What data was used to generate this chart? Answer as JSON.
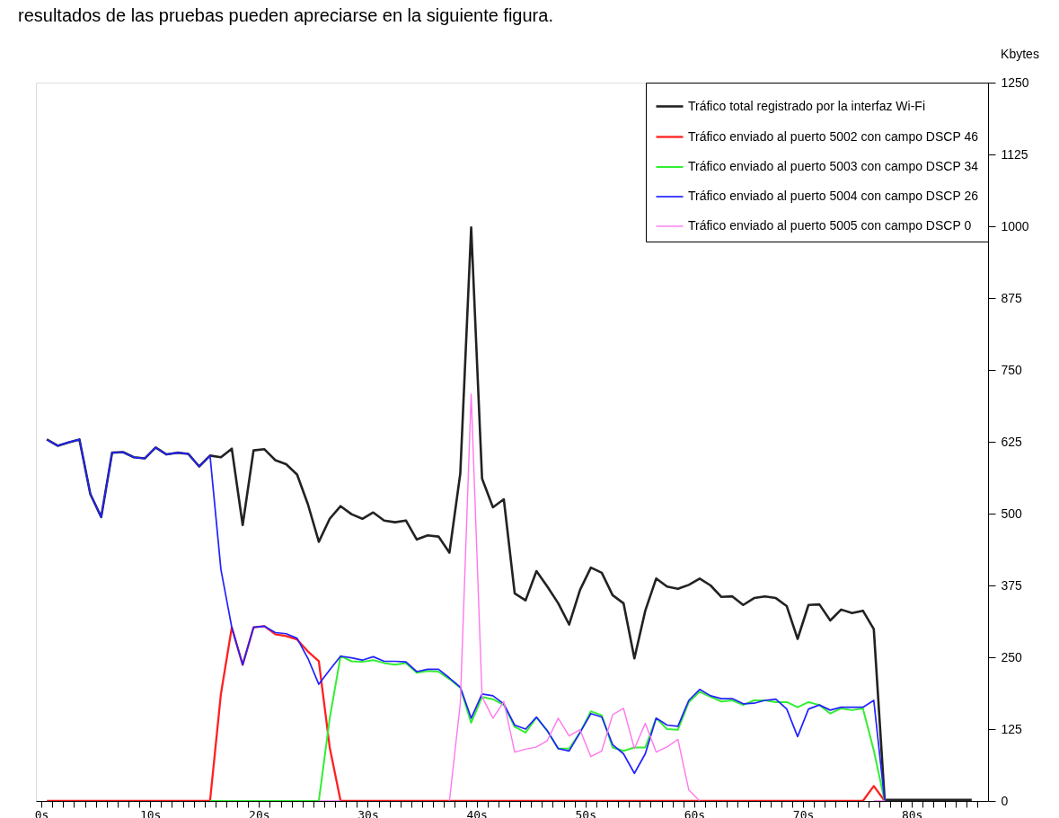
{
  "chart_data": {
    "type": "line",
    "annotations": [
      "resultados de las pruebas pueden apreciarse en la siguiente figura."
    ],
    "ylabel": "Kbytes",
    "x": [
      0.5,
      1.5,
      2.5,
      3.5,
      4.5,
      5.5,
      6.5,
      7.5,
      8.5,
      9.5,
      10.5,
      11.5,
      12.5,
      13.5,
      14.5,
      15.5,
      16.5,
      17.5,
      18.5,
      19.5,
      20.5,
      21.5,
      22.5,
      23.5,
      24.5,
      25.5,
      26.5,
      27.5,
      28.5,
      29.5,
      30.5,
      31.5,
      32.5,
      33.5,
      34.5,
      35.5,
      36.5,
      37.5,
      38.5,
      39.5,
      40.5,
      41.5,
      42.5,
      43.5,
      44.5,
      45.5,
      46.5,
      47.5,
      48.5,
      49.5,
      50.5,
      51.5,
      52.5,
      53.5,
      54.5,
      55.5,
      56.5,
      57.5,
      58.5,
      59.5,
      60.5,
      61.5,
      62.5,
      63.5,
      64.5,
      65.5,
      66.5,
      67.5,
      68.5,
      69.5,
      70.5,
      71.5,
      72.5,
      73.5,
      74.5,
      75.5,
      76.5,
      77.5,
      78.5,
      79.5,
      80.5,
      81.5,
      82.5,
      83.5,
      84.5,
      85.5
    ],
    "series": [
      {
        "name": "Tráfico total registrado por la interfaz Wi-Fi",
        "color": "#222222",
        "values": [
          629,
          618,
          624,
          629,
          534,
          494,
          606,
          607,
          598,
          596,
          615,
          603,
          606,
          604,
          582,
          601,
          598,
          613,
          480,
          610,
          612,
          593,
          586,
          568,
          516,
          451,
          491,
          513,
          499,
          491,
          502,
          488,
          485,
          488,
          455,
          462,
          460,
          432,
          570,
          998,
          561,
          511,
          525,
          361,
          349,
          400,
          373,
          344,
          307,
          367,
          406,
          397,
          358,
          344,
          248,
          331,
          387,
          373,
          369,
          376,
          387,
          375,
          355,
          356,
          341,
          353,
          356,
          353,
          339,
          282,
          341,
          342,
          314,
          333,
          327,
          331,
          299,
          2,
          2,
          2,
          2,
          2,
          2,
          2,
          2,
          2
        ]
      },
      {
        "name": "Tráfico enviado al puerto 5002 con campo DSCP 46",
        "color": "#ff2020",
        "values": [
          0,
          0,
          0,
          0,
          0,
          0,
          0,
          0,
          0,
          0,
          0,
          0,
          0,
          0,
          0,
          0,
          186,
          302,
          237,
          302,
          304,
          290,
          287,
          281,
          260,
          243,
          93,
          0,
          0,
          0,
          0,
          0,
          0,
          0,
          0,
          0,
          0,
          0,
          0,
          0,
          0,
          0,
          0,
          0,
          0,
          0,
          0,
          0,
          0,
          0,
          0,
          0,
          0,
          0,
          0,
          0,
          0,
          0,
          0,
          0,
          0,
          0,
          0,
          0,
          0,
          0,
          0,
          0,
          0,
          0,
          0,
          0,
          0,
          0,
          0,
          0,
          26,
          0,
          null,
          null,
          null,
          null,
          null,
          null,
          null,
          null
        ]
      },
      {
        "name": "Tráfico enviado al puerto 5003 con campo DSCP 34",
        "color": "#33ee33",
        "values": [
          null,
          null,
          null,
          null,
          null,
          null,
          null,
          null,
          null,
          null,
          null,
          null,
          null,
          null,
          null,
          0,
          0,
          0,
          0,
          0,
          0,
          0,
          0,
          0,
          0,
          0,
          144,
          252,
          243,
          242,
          245,
          240,
          237,
          240,
          223,
          226,
          225,
          212,
          197,
          136,
          181,
          177,
          167,
          129,
          119,
          145,
          122,
          91,
          91,
          119,
          156,
          149,
          93,
          87,
          93,
          93,
          144,
          125,
          124,
          172,
          190,
          181,
          173,
          175,
          167,
          175,
          175,
          172,
          172,
          163,
          172,
          167,
          152,
          161,
          158,
          161,
          88,
          0,
          null,
          null,
          null,
          null,
          null,
          null,
          null,
          null
        ]
      },
      {
        "name": "Tráfico enviado al puerto 5004 con campo DSCP 26",
        "color": "#2222ff",
        "values": [
          629,
          618,
          624,
          629,
          534,
          494,
          606,
          607,
          598,
          596,
          615,
          603,
          606,
          604,
          582,
          601,
          403,
          302,
          237,
          302,
          304,
          293,
          291,
          283,
          248,
          203,
          228,
          252,
          249,
          245,
          251,
          243,
          243,
          242,
          225,
          229,
          229,
          214,
          198,
          144,
          186,
          183,
          169,
          132,
          125,
          146,
          122,
          91,
          87,
          119,
          152,
          146,
          98,
          82,
          48,
          82,
          144,
          132,
          130,
          175,
          194,
          183,
          178,
          178,
          169,
          170,
          175,
          177,
          160,
          112,
          160,
          167,
          158,
          163,
          163,
          163,
          175,
          0,
          null,
          null,
          null,
          null,
          null,
          null,
          null,
          null
        ]
      },
      {
        "name": "Tráfico enviado al puerto 5005 con campo DSCP 0",
        "color": "#ff77ee",
        "values": [
          null,
          null,
          null,
          null,
          null,
          null,
          null,
          null,
          null,
          null,
          null,
          null,
          null,
          null,
          null,
          null,
          null,
          null,
          null,
          null,
          null,
          null,
          null,
          null,
          null,
          0,
          0,
          0,
          null,
          null,
          null,
          null,
          null,
          null,
          null,
          null,
          null,
          0,
          170,
          708,
          181,
          144,
          173,
          85,
          90,
          94,
          105,
          144,
          113,
          124,
          77,
          87,
          150,
          161,
          91,
          135,
          85,
          94,
          107,
          19,
          0,
          null,
          null,
          null,
          null,
          null,
          null,
          null,
          null,
          null,
          null,
          null,
          null,
          null,
          null,
          null,
          0,
          0,
          null,
          null,
          null,
          null,
          null,
          null,
          null,
          null
        ]
      }
    ],
    "xlim": [
      -0.5,
      87
    ],
    "xticks": [
      {
        "value": 0,
        "label": "0s"
      },
      {
        "value": 1,
        "label": null
      },
      {
        "value": 2,
        "label": null
      },
      {
        "value": 3,
        "label": null
      },
      {
        "value": 4,
        "label": null
      },
      {
        "value": 5,
        "label": null
      },
      {
        "value": 6,
        "label": null
      },
      {
        "value": 7,
        "label": null
      },
      {
        "value": 8,
        "label": null
      },
      {
        "value": 9,
        "label": null
      },
      {
        "value": 10,
        "label": "10s"
      },
      {
        "value": 11,
        "label": null
      },
      {
        "value": 12,
        "label": null
      },
      {
        "value": 13,
        "label": null
      },
      {
        "value": 14,
        "label": null
      },
      {
        "value": 15,
        "label": null
      },
      {
        "value": 16,
        "label": null
      },
      {
        "value": 17,
        "label": null
      },
      {
        "value": 18,
        "label": null
      },
      {
        "value": 19,
        "label": null
      },
      {
        "value": 20,
        "label": "20s"
      },
      {
        "value": 21,
        "label": null
      },
      {
        "value": 22,
        "label": null
      },
      {
        "value": 23,
        "label": null
      },
      {
        "value": 24,
        "label": null
      },
      {
        "value": 25,
        "label": null
      },
      {
        "value": 26,
        "label": null
      },
      {
        "value": 27,
        "label": null
      },
      {
        "value": 28,
        "label": null
      },
      {
        "value": 29,
        "label": null
      },
      {
        "value": 30,
        "label": "30s"
      },
      {
        "value": 31,
        "label": null
      },
      {
        "value": 32,
        "label": null
      },
      {
        "value": 33,
        "label": null
      },
      {
        "value": 34,
        "label": null
      },
      {
        "value": 35,
        "label": null
      },
      {
        "value": 36,
        "label": null
      },
      {
        "value": 37,
        "label": null
      },
      {
        "value": 38,
        "label": null
      },
      {
        "value": 39,
        "label": null
      },
      {
        "value": 40,
        "label": "40s"
      },
      {
        "value": 41,
        "label": null
      },
      {
        "value": 42,
        "label": null
      },
      {
        "value": 43,
        "label": null
      },
      {
        "value": 44,
        "label": null
      },
      {
        "value": 45,
        "label": null
      },
      {
        "value": 46,
        "label": null
      },
      {
        "value": 47,
        "label": null
      },
      {
        "value": 48,
        "label": null
      },
      {
        "value": 49,
        "label": null
      },
      {
        "value": 50,
        "label": "50s"
      },
      {
        "value": 51,
        "label": null
      },
      {
        "value": 52,
        "label": null
      },
      {
        "value": 53,
        "label": null
      },
      {
        "value": 54,
        "label": null
      },
      {
        "value": 55,
        "label": null
      },
      {
        "value": 56,
        "label": null
      },
      {
        "value": 57,
        "label": null
      },
      {
        "value": 58,
        "label": null
      },
      {
        "value": 59,
        "label": null
      },
      {
        "value": 60,
        "label": "60s"
      },
      {
        "value": 61,
        "label": null
      },
      {
        "value": 62,
        "label": null
      },
      {
        "value": 63,
        "label": null
      },
      {
        "value": 64,
        "label": null
      },
      {
        "value": 65,
        "label": null
      },
      {
        "value": 66,
        "label": null
      },
      {
        "value": 67,
        "label": null
      },
      {
        "value": 68,
        "label": null
      },
      {
        "value": 69,
        "label": null
      },
      {
        "value": 70,
        "label": "70s"
      },
      {
        "value": 71,
        "label": null
      },
      {
        "value": 72,
        "label": null
      },
      {
        "value": 73,
        "label": null
      },
      {
        "value": 74,
        "label": null
      },
      {
        "value": 75,
        "label": null
      },
      {
        "value": 76,
        "label": null
      },
      {
        "value": 77,
        "label": null
      },
      {
        "value": 78,
        "label": null
      },
      {
        "value": 79,
        "label": null
      },
      {
        "value": 80,
        "label": "80s"
      },
      {
        "value": 81,
        "label": null
      },
      {
        "value": 82,
        "label": null
      },
      {
        "value": 83,
        "label": null
      },
      {
        "value": 84,
        "label": null
      },
      {
        "value": 85,
        "label": null
      },
      {
        "value": 86,
        "label": null
      }
    ],
    "ylim": [
      0,
      1250
    ],
    "yticks": [
      0,
      125,
      250,
      375,
      500,
      625,
      750,
      875,
      1000,
      1125,
      1250
    ],
    "grid": false,
    "legend": "top right",
    "line_style": "solid",
    "marker": "none"
  }
}
